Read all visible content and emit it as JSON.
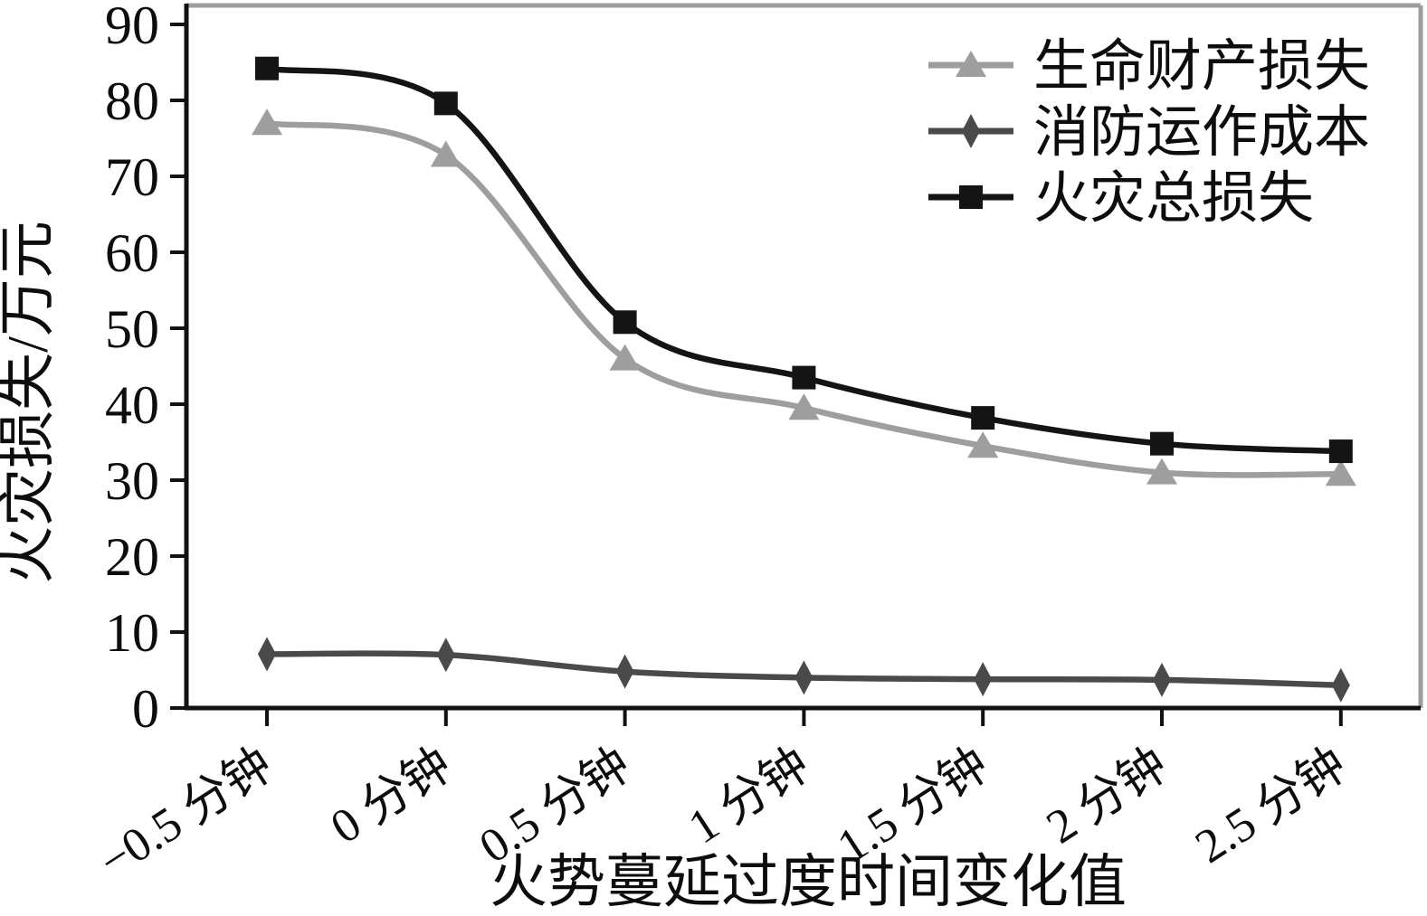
{
  "chart_data": {
    "type": "line",
    "title": "",
    "xlabel": "火势蔓延过度时间变化值",
    "ylabel": "火灾损失/万元",
    "x_unit": "分钟",
    "y_unit": "万元",
    "categories": [
      "−0.5 分钟",
      "0 分钟",
      "0.5 分钟",
      "1 分钟",
      "1.5 分钟",
      "2 分钟",
      "2.5 分钟"
    ],
    "x_values": [
      -0.5,
      0,
      0.5,
      1,
      1.5,
      2,
      2.5
    ],
    "y_ticks": [
      0,
      10,
      20,
      30,
      40,
      50,
      60,
      70,
      80,
      90
    ],
    "ylim": [
      0,
      92.5
    ],
    "grid": false,
    "legend_position": "top-right-inside",
    "series": [
      {
        "name": "生命财产损失",
        "marker": "triangle",
        "color": "#9e9e9e",
        "values": [
          77,
          72.8,
          46,
          39.5,
          34.5,
          31,
          30.8
        ]
      },
      {
        "name": "消防运作成本",
        "marker": "diamond",
        "color": "#4a4a4a",
        "values": [
          7.1,
          7,
          4.8,
          4,
          3.8,
          3.7,
          3
        ]
      },
      {
        "name": "火灾总损失",
        "marker": "square",
        "color": "#141414",
        "values": [
          84.2,
          79.6,
          50.8,
          43.5,
          38.2,
          34.8,
          33.8
        ]
      }
    ]
  },
  "colors": {
    "background": "#ffffff",
    "axis": "#111111",
    "box_top_right": "#9e9e9e"
  }
}
